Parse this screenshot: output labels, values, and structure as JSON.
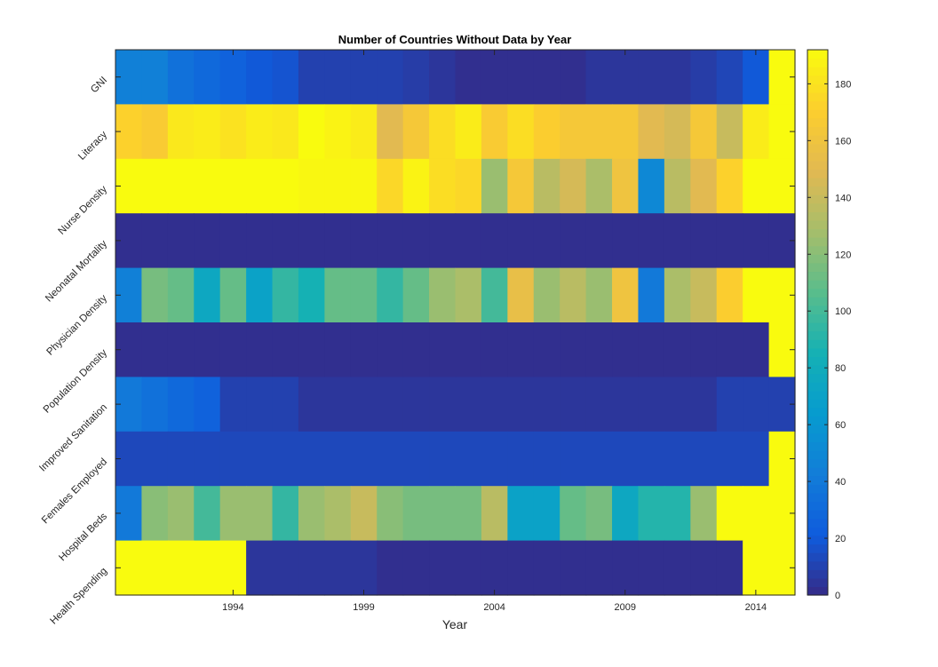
{
  "chart_data": {
    "type": "heatmap",
    "title": "Number of Countries Without Data by Year",
    "xlabel": "Year",
    "ylabel": "",
    "years": [
      1990,
      1991,
      1992,
      1993,
      1994,
      1995,
      1996,
      1997,
      1998,
      1999,
      2000,
      2001,
      2002,
      2003,
      2004,
      2005,
      2006,
      2007,
      2008,
      2009,
      2010,
      2011,
      2012,
      2013,
      2014,
      2015
    ],
    "xticks": [
      1994,
      1999,
      2004,
      2009,
      2014
    ],
    "rows": [
      "GNI",
      "Literacy",
      "Nurse Density",
      "Neonatal Mortality",
      "Physician Density",
      "Population Density",
      "Improved Sanitation",
      "Females Employed",
      "Hospital Beds",
      "Health Spending"
    ],
    "values": [
      [
        45,
        45,
        35,
        30,
        25,
        20,
        18,
        10,
        10,
        10,
        10,
        8,
        5,
        2,
        2,
        2,
        2,
        2,
        5,
        5,
        5,
        5,
        8,
        12,
        20,
        192
      ],
      [
        172,
        168,
        183,
        185,
        180,
        185,
        183,
        192,
        188,
        185,
        150,
        165,
        178,
        185,
        168,
        178,
        170,
        165,
        165,
        165,
        150,
        145,
        165,
        140,
        185,
        192
      ],
      [
        192,
        192,
        192,
        192,
        192,
        192,
        192,
        190,
        190,
        190,
        175,
        188,
        178,
        175,
        125,
        165,
        135,
        145,
        130,
        160,
        50,
        135,
        150,
        172,
        192,
        192
      ],
      [
        2,
        2,
        2,
        2,
        2,
        2,
        2,
        2,
        2,
        2,
        2,
        2,
        2,
        2,
        2,
        2,
        2,
        2,
        2,
        2,
        2,
        2,
        2,
        2,
        2,
        2
      ],
      [
        45,
        115,
        110,
        75,
        110,
        70,
        95,
        85,
        110,
        110,
        95,
        110,
        125,
        130,
        100,
        155,
        125,
        135,
        125,
        160,
        40,
        130,
        140,
        170,
        192,
        192
      ],
      [
        2,
        2,
        2,
        2,
        2,
        2,
        2,
        2,
        2,
        2,
        2,
        2,
        2,
        2,
        2,
        2,
        2,
        2,
        2,
        2,
        2,
        2,
        2,
        2,
        2,
        192
      ],
      [
        40,
        35,
        30,
        25,
        10,
        10,
        10,
        5,
        5,
        5,
        5,
        5,
        5,
        5,
        5,
        5,
        5,
        5,
        5,
        5,
        5,
        5,
        5,
        10,
        10,
        10
      ],
      [
        13,
        13,
        13,
        13,
        13,
        13,
        13,
        13,
        13,
        13,
        13,
        13,
        13,
        13,
        13,
        13,
        13,
        13,
        13,
        13,
        13,
        13,
        13,
        13,
        13,
        192
      ],
      [
        40,
        120,
        125,
        100,
        125,
        125,
        95,
        125,
        130,
        140,
        120,
        115,
        115,
        115,
        135,
        70,
        70,
        110,
        115,
        75,
        90,
        90,
        125,
        192,
        192,
        192
      ],
      [
        192,
        192,
        192,
        192,
        192,
        5,
        5,
        5,
        5,
        5,
        2,
        2,
        2,
        2,
        2,
        2,
        2,
        2,
        2,
        2,
        2,
        2,
        2,
        2,
        192,
        192
      ]
    ],
    "clim": [
      0,
      192
    ],
    "colormap": "parula",
    "colorbar_ticks": [
      0,
      20,
      40,
      60,
      80,
      100,
      120,
      140,
      160,
      180
    ],
    "grid": false,
    "legend": "colorbar-right"
  }
}
